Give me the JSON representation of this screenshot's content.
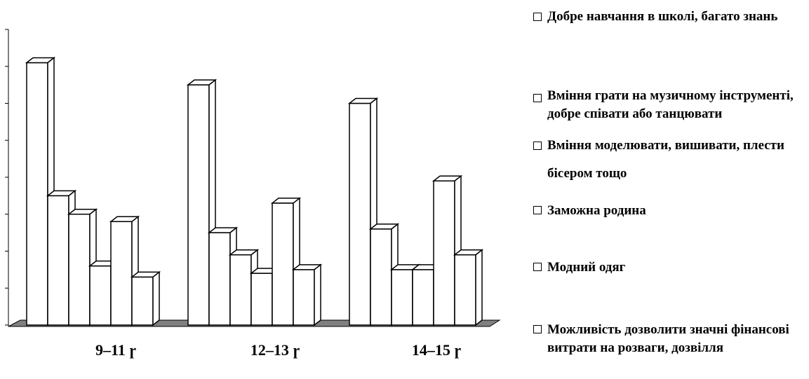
{
  "chart_data": {
    "type": "bar",
    "style": "3d-clustered-column",
    "fill_color": "#ffffff",
    "stroke_color": "#000000",
    "floor_color": "#808080",
    "categories": [
      "9–11 ɼ",
      "12–13 ɼ",
      "14–15 ɼ"
    ],
    "series": [
      {
        "name": "Добре навчання в школі, багато знань",
        "values": [
          7.1,
          6.5,
          6.0
        ]
      },
      {
        "name": "Вміння грати на музичному інструменті, добре співати або танцювати",
        "values": [
          3.5,
          2.5,
          2.6
        ]
      },
      {
        "name": "Вміння моделювати, вишивати, плести бісером тощо",
        "values": [
          3.0,
          1.9,
          1.5
        ]
      },
      {
        "name": "Заможна родина",
        "values": [
          1.6,
          1.4,
          1.5
        ]
      },
      {
        "name": "Модний одяг",
        "values": [
          2.8,
          3.3,
          3.9
        ]
      },
      {
        "name": "Можливість дозволити значні фінансові витрати на розваги, дозвілля",
        "values": [
          1.3,
          1.5,
          1.9
        ]
      }
    ],
    "ylim": [
      0,
      8
    ],
    "ytick_step": 1,
    "ytick_labels_shown": false,
    "grid": false,
    "legend_position": "right"
  }
}
